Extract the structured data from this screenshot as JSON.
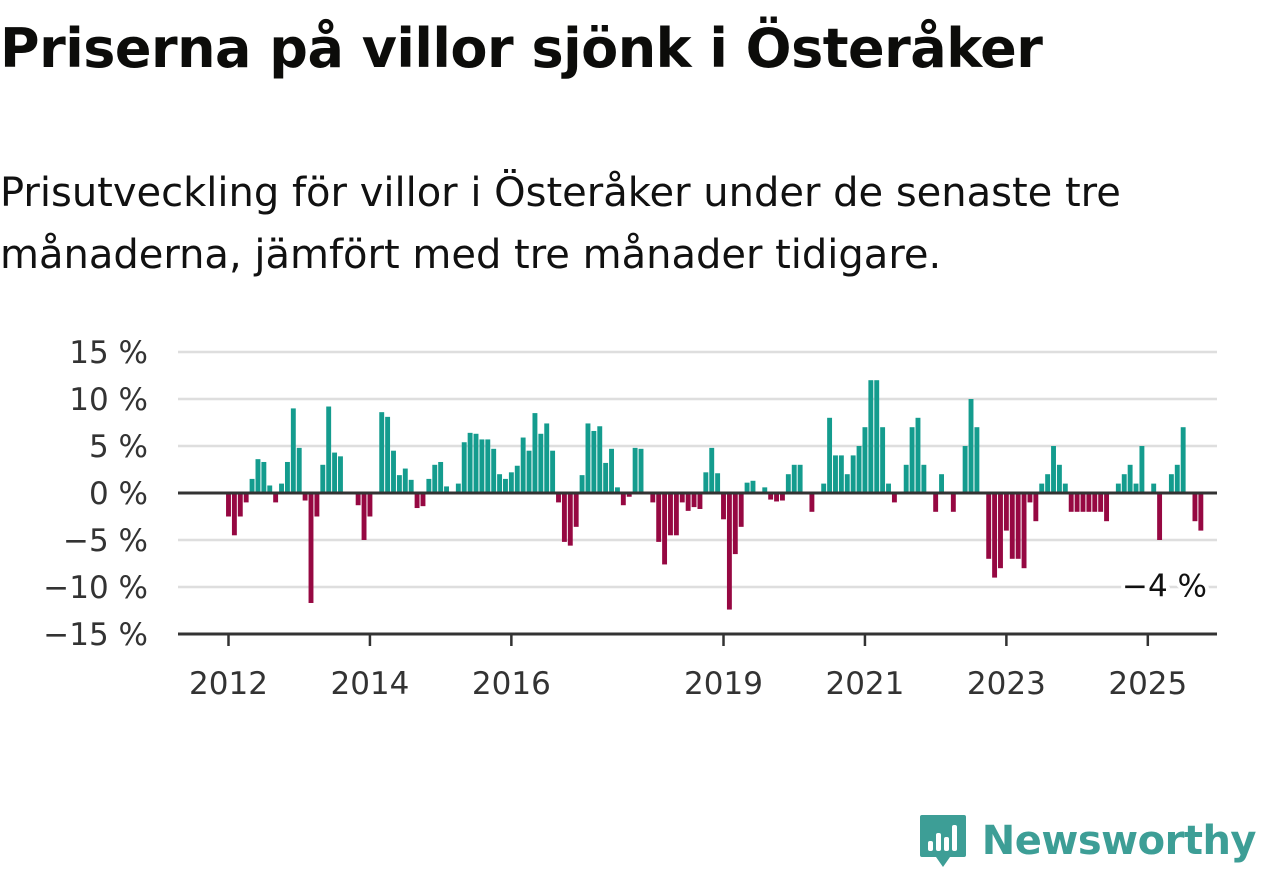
{
  "title": "Priserna på villor sjönk i Österåker",
  "subtitle": "Prisutveckling för villor i Österåker under de senaste tre månaderna, jämfört med tre månader tidigare.",
  "brand": {
    "name": "Newsworthy",
    "icon": "newsworthy-logo-icon"
  },
  "colors": {
    "positive": "#149c8e",
    "negative": "#960842",
    "grid": "#dedede",
    "axis": "#333333"
  },
  "chart_data": {
    "type": "bar",
    "title": "Priserna på villor sjönk i Österåker",
    "subtitle": "Prisutveckling för villor i Österåker under de senaste tre månaderna, jämfört med tre månader tidigare.",
    "xlabel": "",
    "ylabel": "",
    "unit": "%",
    "ylim": [
      -15,
      15
    ],
    "yticks": [
      15,
      10,
      5,
      0,
      -5,
      -10,
      -15
    ],
    "ytick_labels": [
      "15 %",
      "10 %",
      "5 %",
      "0 %",
      "−5 %",
      "−10 %",
      "−15 %"
    ],
    "x_start": "2012-01",
    "x_end": "2025-06",
    "xtick_labels": [
      {
        "label": "2012",
        "x": "2012-01"
      },
      {
        "label": "2014",
        "x": "2014-01"
      },
      {
        "label": "2016",
        "x": "2016-01"
      },
      {
        "label": "2019",
        "x": "2019-01"
      },
      {
        "label": "2021",
        "x": "2021-01"
      },
      {
        "label": "2023",
        "x": "2023-01"
      },
      {
        "label": "2025",
        "x": "2025-01"
      }
    ],
    "grid": true,
    "annotation": {
      "text": "−4 %",
      "x": "2025-03",
      "y": -4
    },
    "values": [
      -2.5,
      -4.5,
      -2.5,
      -1,
      1.5,
      3.6,
      3.3,
      0.8,
      -1,
      1,
      3.3,
      9,
      4.8,
      -0.8,
      -11.7,
      -2.5,
      3,
      9.2,
      4.3,
      3.9,
      0,
      0,
      -1.3,
      -5,
      -2.5,
      0,
      8.6,
      8.1,
      4.5,
      1.9,
      2.6,
      1.4,
      -1.6,
      -1.4,
      1.5,
      3,
      3.3,
      0.7,
      0,
      1,
      5.4,
      6.4,
      6.3,
      5.7,
      5.7,
      4.7,
      2,
      1.5,
      2.2,
      2.9,
      5.9,
      4.5,
      8.5,
      6.3,
      7.4,
      4.5,
      -1,
      -5.2,
      -5.6,
      -3.6,
      1.9,
      7.4,
      6.6,
      7.1,
      3.2,
      4.7,
      0.6,
      -1.3,
      -0.4,
      4.8,
      4.7,
      0,
      -1,
      -5.2,
      -7.6,
      -4.5,
      -4.5,
      -1,
      -1.9,
      -1.5,
      -1.7,
      2.2,
      4.8,
      2.1,
      -2.8,
      -12.4,
      -6.5,
      -3.6,
      1.1,
      1.3,
      0,
      0.6,
      -0.7,
      -0.9,
      -0.8,
      2,
      3,
      3,
      0,
      -2,
      0,
      1,
      8,
      4,
      4,
      2,
      4,
      5,
      7,
      12,
      12,
      7,
      1,
      -1,
      0,
      3,
      7,
      8,
      3,
      0,
      -2,
      2,
      0,
      -2,
      0,
      5,
      10,
      7,
      0,
      -7,
      -9,
      -8,
      -4,
      -7,
      -7,
      -8,
      -1,
      -3,
      1,
      2,
      5,
      3,
      1,
      -2,
      -2,
      -2,
      -2,
      -2,
      -2,
      -3,
      0,
      1,
      2,
      3,
      1,
      5,
      0,
      1,
      -5,
      0,
      2,
      3,
      7,
      0,
      -3,
      -4
    ]
  }
}
